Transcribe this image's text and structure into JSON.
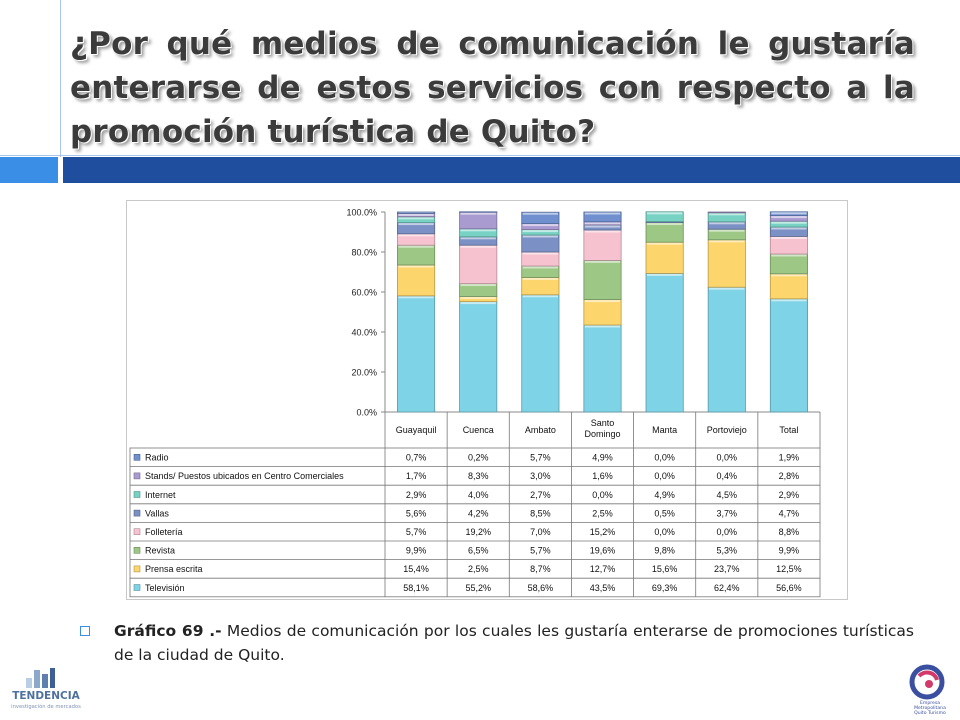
{
  "slide": {
    "title": "¿Por qué medios de comunicación le gustaría enterarse de estos servicios con respecto a la promoción turística de Quito?",
    "caption_bold": "Gráfico 69 .-",
    "caption_text": " Medios de comunicación por los cuales les gustaría enterarse de promociones turísticas de  la ciudad de Quito.",
    "logo_left": {
      "name": "TENDENCIA",
      "tagline": "investigación de mercados"
    },
    "logo_right": {
      "lines": [
        "Empresa",
        "Metropolitana",
        "Quito Turismo"
      ]
    },
    "colors": {
      "title_bar": "#1f4e9e",
      "title_box": "#3a8ee6"
    }
  },
  "chart_data": {
    "type": "bar",
    "stacked": true,
    "categories": [
      "Guayaquil",
      "Cuenca",
      "Ambato",
      "Santo Domingo",
      "Manta",
      "Portoviejo",
      "Total"
    ],
    "ylim": [
      0,
      100
    ],
    "yticks": [
      "0.0%",
      "20.0%",
      "40.0%",
      "60.0%",
      "80.0%",
      "100.0%"
    ],
    "grid": false,
    "legend_position": "data-table",
    "series": [
      {
        "name": "Televisión",
        "color": "#7fd3e6",
        "values": [
          58.1,
          55.2,
          58.6,
          43.5,
          69.3,
          62.4,
          56.6
        ],
        "labels": [
          "58,1%",
          "55,2%",
          "58,6%",
          "43,5%",
          "69,3%",
          "62,4%",
          "56,6%"
        ]
      },
      {
        "name": "Prensa escrita",
        "color": "#fcd66c",
        "values": [
          15.4,
          2.5,
          8.7,
          12.7,
          15.6,
          23.7,
          12.5
        ],
        "labels": [
          "15,4%",
          "2,5%",
          "8,7%",
          "12,7%",
          "15,6%",
          "23,7%",
          "12,5%"
        ]
      },
      {
        "name": "Revista",
        "color": "#9cc784",
        "values": [
          9.9,
          6.5,
          5.7,
          19.6,
          9.8,
          5.3,
          9.9
        ],
        "labels": [
          "9,9%",
          "6,5%",
          "5,7%",
          "19,6%",
          "9,8%",
          "5,3%",
          "9,9%"
        ]
      },
      {
        "name": "Folletería",
        "color": "#f7c2d0",
        "values": [
          5.7,
          19.2,
          7.0,
          15.2,
          0.0,
          0.0,
          8.8
        ],
        "labels": [
          "5,7%",
          "19,2%",
          "7,0%",
          "15,2%",
          "0,0%",
          "0,0%",
          "8,8%"
        ]
      },
      {
        "name": "Vallas",
        "color": "#7b90c4",
        "values": [
          5.6,
          4.2,
          8.5,
          2.5,
          0.5,
          3.7,
          4.7
        ],
        "labels": [
          "5,6%",
          "4,2%",
          "8,5%",
          "2,5%",
          "0,5%",
          "3,7%",
          "4,7%"
        ]
      },
      {
        "name": "Internet",
        "color": "#78d2c4",
        "values": [
          2.9,
          4.0,
          2.7,
          0.0,
          4.9,
          4.5,
          2.9
        ],
        "labels": [
          "2,9%",
          "4,0%",
          "2,7%",
          "0,0%",
          "4,9%",
          "4,5%",
          "2,9%"
        ]
      },
      {
        "name": "Stands/ Puestos ubicados en Centro Comerciales",
        "color": "#a99bd0",
        "values": [
          1.7,
          8.3,
          3.0,
          1.6,
          0.0,
          0.4,
          2.8
        ],
        "labels": [
          "1,7%",
          "8,3%",
          "3,0%",
          "1,6%",
          "0,0%",
          "0,4%",
          "2,8%"
        ]
      },
      {
        "name": "Radio",
        "color": "#6f8fcf",
        "values": [
          0.7,
          0.2,
          5.7,
          4.9,
          0.0,
          0.0,
          1.9
        ],
        "labels": [
          "0,7%",
          "0,2%",
          "5,7%",
          "4,9%",
          "0,0%",
          "0,0%",
          "1,9%"
        ]
      }
    ]
  }
}
